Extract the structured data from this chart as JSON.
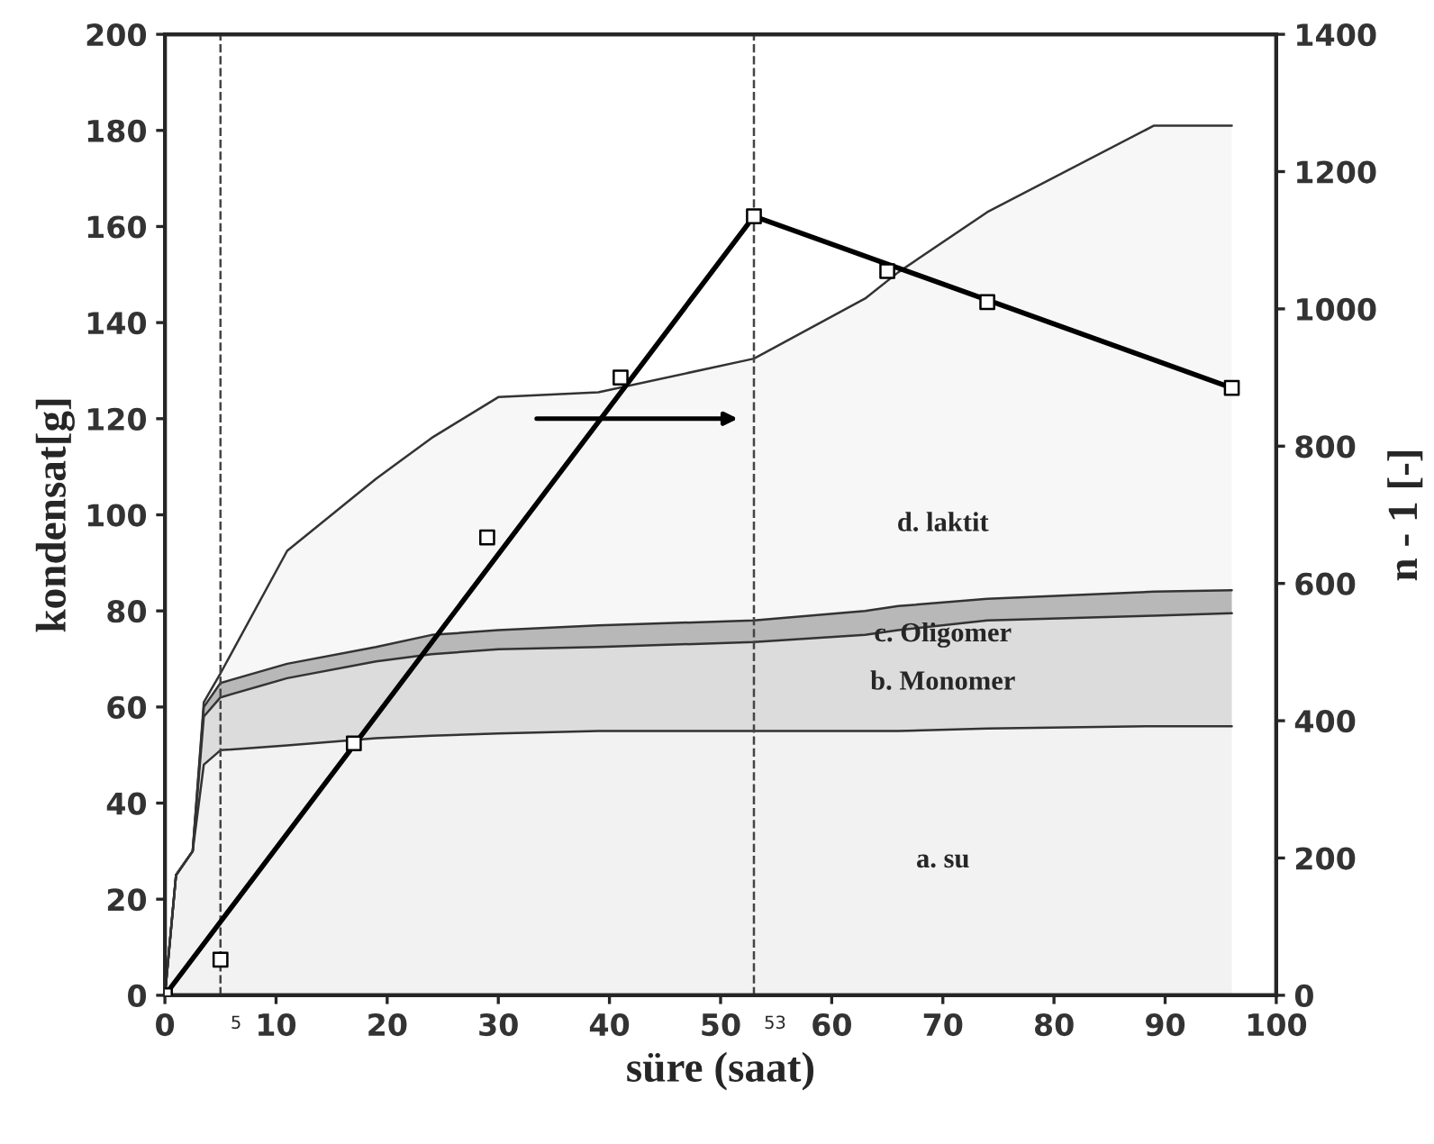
{
  "chart_data": {
    "type": "area",
    "stacked": true,
    "xlabel": "süre (saat)",
    "ylabel": "kondensat[g]",
    "y2label": "n - 1 [-]",
    "x": [
      0,
      1,
      2.5,
      3.5,
      5,
      11,
      19,
      24,
      30,
      39,
      53,
      63,
      66,
      74,
      89,
      96
    ],
    "series": [
      {
        "color": "#f2f2f2",
        "values": [
          0,
          25,
          30,
          48,
          51,
          52,
          53.5,
          54,
          54.5,
          55,
          55,
          55,
          55,
          55.5,
          56,
          56
        ]
      },
      {
        "color": "#dcdcdc",
        "values": [
          0,
          0,
          0,
          10,
          11,
          14,
          16,
          17,
          17.5,
          17.5,
          18.5,
          20,
          21,
          22.5,
          23,
          23.5
        ]
      },
      {
        "color": "#b8b8b8",
        "values": [
          0,
          0,
          0,
          2,
          3,
          3,
          3,
          4,
          4,
          4.5,
          4.5,
          5,
          5,
          4.5,
          5,
          4.8
        ]
      },
      {
        "color": "#f7f7f7",
        "values": [
          0,
          0,
          0,
          1,
          2,
          23.5,
          35,
          41,
          48.5,
          48.5,
          54.5,
          65,
          69.5,
          80.5,
          97,
          96.7
        ]
      },
      {
        "type": "line",
        "axis": "y2",
        "color": "#000000",
        "marker": "none",
        "line_style": "solid",
        "x": [
          0,
          53,
          96
        ],
        "values": [
          0,
          1135,
          885
        ]
      },
      {
        "type": "scatter",
        "axis": "y2",
        "color": "#000000",
        "marker": "square",
        "x": [
          0,
          5,
          17,
          29,
          41,
          53,
          65,
          74,
          96
        ],
        "values": [
          0,
          52,
          367,
          667,
          900,
          1135,
          1055,
          1010,
          885
        ]
      }
    ],
    "xlim": [
      0,
      100
    ],
    "xticks": [
      0,
      10,
      20,
      30,
      40,
      50,
      60,
      70,
      80,
      90,
      100
    ],
    "ylim": [
      0,
      200
    ],
    "yticks": [
      0,
      20,
      40,
      60,
      80,
      100,
      120,
      140,
      160,
      180,
      200
    ],
    "y2lim": [
      0,
      1400
    ],
    "y2ticks": [
      0,
      200,
      400,
      600,
      800,
      1000,
      1200,
      1400
    ],
    "ref_lines": [
      {
        "axis": "x",
        "value": 5,
        "label": "5",
        "line_style": "dashed"
      },
      {
        "axis": "x",
        "value": 53,
        "label": "53",
        "line_style": "dashed"
      }
    ],
    "annotations": [
      "d. laktit",
      "c. Oligomer",
      "b. Monomer",
      "a. su"
    ],
    "grid": false,
    "legend": false
  }
}
